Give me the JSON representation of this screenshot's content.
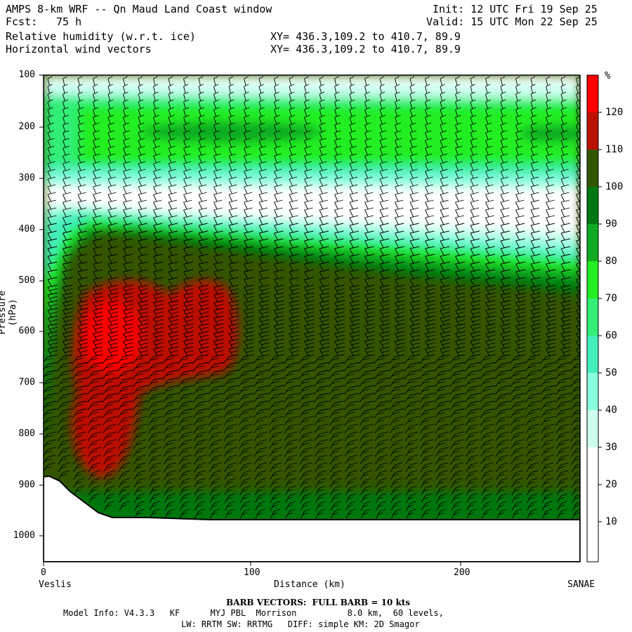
{
  "header": {
    "title": "AMPS 8-km WRF -- Qn Maud Land Coast window",
    "init": "Init: 12 UTC Fri 19 Sep 25",
    "fcst_label": "Fcst:",
    "fcst_value": "75 h",
    "valid": "Valid: 15 UTC Mon 22 Sep 25",
    "field1": "Relative humidity (w.r.t. ice)",
    "field2": "Horizontal wind vectors",
    "xy1": "XY= 436.3,109.2 to 410.7, 89.9",
    "xy2": "XY= 436.3,109.2 to 410.7, 89.9"
  },
  "footer": {
    "barb": "BARB VECTORS:  FULL BARB = 10 kts",
    "model1": "Model Info: V4.3.3   KF      MYJ PBL  Morrison          8.0 km,  60 levels,",
    "model2": "LW: RRTM SW: RRTMG   DIFF: simple KM: 2D Smagor"
  },
  "colors": {
    "white": "#ffffff",
    "c30": "#ccffee",
    "c40": "#88ffdd",
    "c50": "#44eebb",
    "c60": "#33ee77",
    "c70": "#22ee22",
    "c80": "#22cc22",
    "c90": "#11aa22",
    "c100": "#007711",
    "c110": "#335500",
    "c120": "#bb1100",
    "c130": "#ff0000"
  },
  "chart_data": {
    "type": "heatmap",
    "title": "Relative humidity (w.r.t. ice)",
    "xlabel": "Distance (km)",
    "ylabel": "Pressure (hPa)",
    "xlim": [
      0,
      259
    ],
    "ylim": [
      1050,
      100
    ],
    "x_ticks": [
      0,
      100,
      200
    ],
    "y_ticks": [
      100,
      200,
      300,
      400,
      500,
      600,
      700,
      800,
      900,
      1000
    ],
    "x_start_label": "Veslis",
    "x_end_label": "SANAE",
    "colorbar": {
      "unit": "%",
      "levels": [
        10,
        20,
        30,
        40,
        50,
        60,
        70,
        80,
        90,
        100,
        110,
        120
      ]
    },
    "terrain_pressure": [
      [
        0,
        885
      ],
      [
        10,
        880
      ],
      [
        20,
        900
      ],
      [
        30,
        930
      ],
      [
        40,
        955
      ],
      [
        50,
        965
      ],
      [
        60,
        963
      ],
      [
        70,
        960
      ],
      [
        100,
        966
      ],
      [
        150,
        965
      ],
      [
        200,
        966
      ],
      [
        259,
        968
      ]
    ]
  }
}
